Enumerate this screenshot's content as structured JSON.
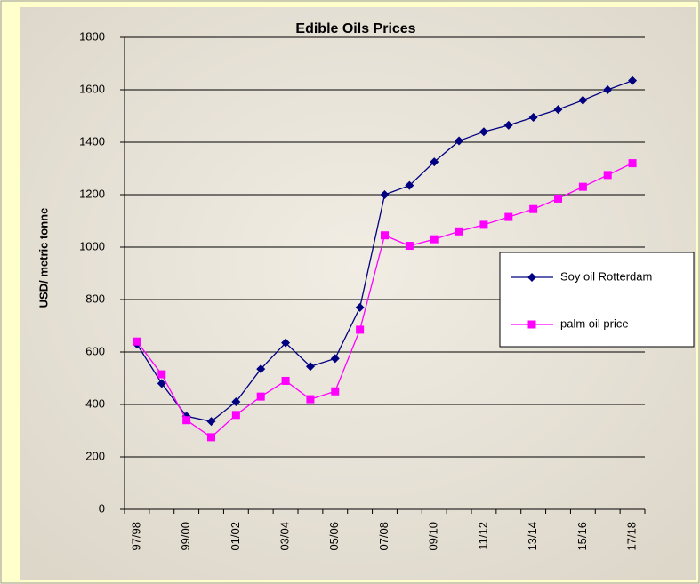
{
  "chart_data": {
    "type": "line",
    "title": "Edible Oils Prices",
    "y_label": "USD/ metric tonne",
    "categories": [
      "97/98",
      null,
      "99/00",
      null,
      "01/02",
      null,
      "03/04",
      null,
      "05/06",
      null,
      "07/08",
      null,
      "09/10",
      null,
      "11/12",
      null,
      "13/14",
      null,
      "15/16",
      null,
      "17/18"
    ],
    "series": [
      {
        "name": "Soy oil Rotterdam",
        "color": "#000080",
        "marker": "diamond",
        "values": [
          630,
          480,
          355,
          335,
          410,
          535,
          635,
          545,
          575,
          770,
          1200,
          1235,
          1325,
          1405,
          1440,
          1465,
          1495,
          1525,
          1560,
          1600,
          1635
        ]
      },
      {
        "name": "palm oil price",
        "color": "#ff00ff",
        "marker": "square",
        "values": [
          640,
          515,
          340,
          275,
          360,
          430,
          490,
          420,
          450,
          685,
          1045,
          1005,
          1030,
          1060,
          1085,
          1115,
          1145,
          1185,
          1230,
          1275,
          1320
        ]
      }
    ],
    "ylim": [
      0,
      1800
    ],
    "yticks": [
      0,
      200,
      400,
      600,
      800,
      1000,
      1200,
      1400,
      1600,
      1800
    ],
    "grid": true,
    "legend": "right"
  }
}
